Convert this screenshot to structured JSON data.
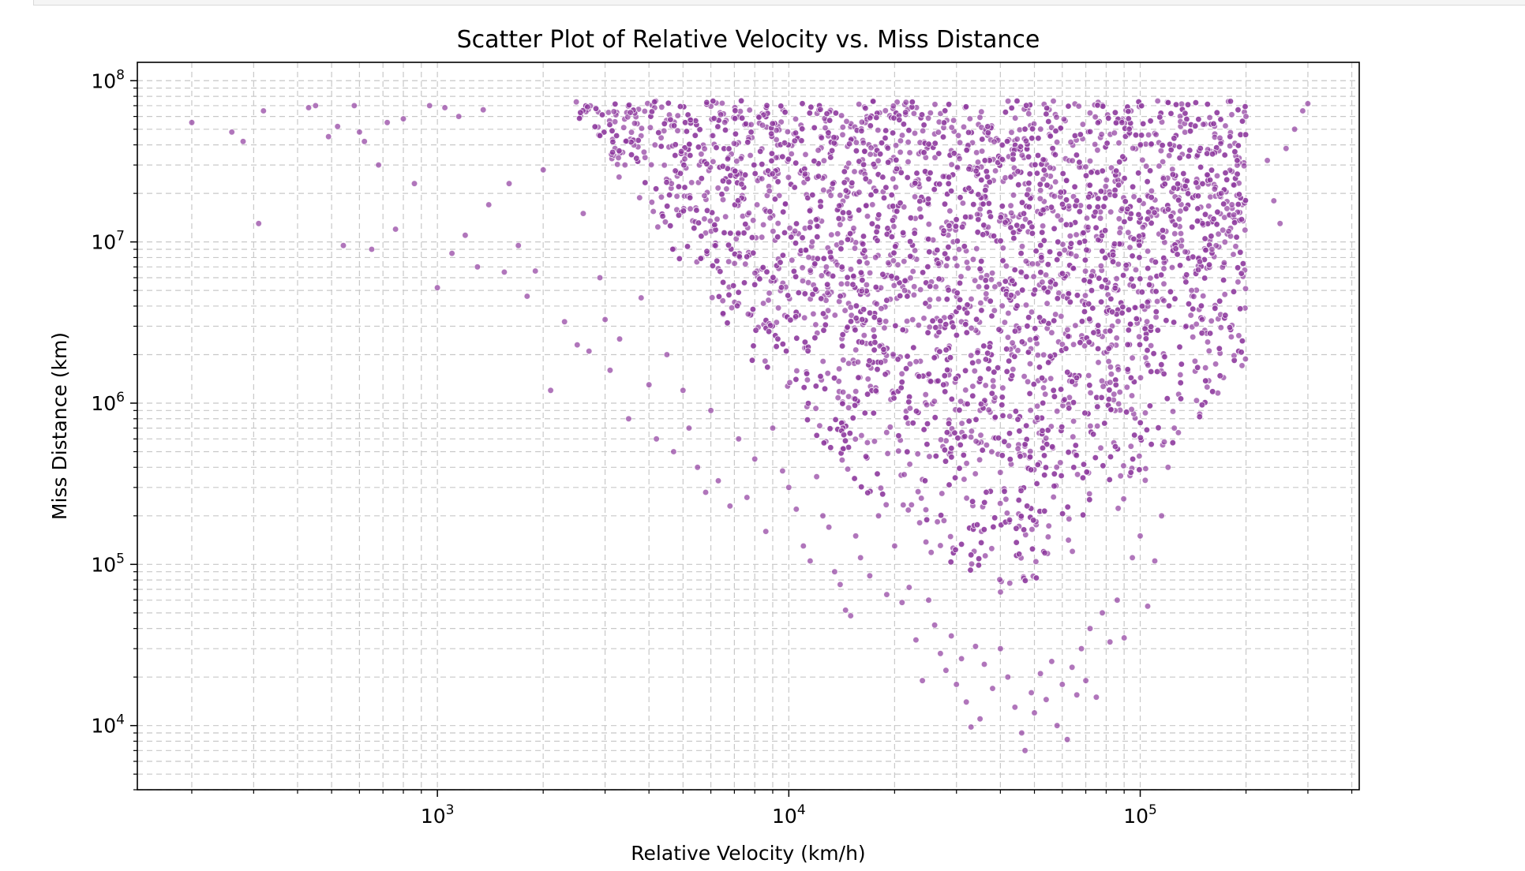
{
  "chart_data": {
    "type": "scatter",
    "title": "Scatter Plot of Relative Velocity vs. Miss Distance",
    "xlabel": "Relative Velocity (km/h)",
    "ylabel": "Miss Distance (km)",
    "xscale": "log",
    "yscale": "log",
    "xlim": [
      140,
      420000
    ],
    "ylim": [
      4000,
      130000000
    ],
    "x_ticks": [
      {
        "value": 1000,
        "base": "10",
        "exp": "3"
      },
      {
        "value": 10000,
        "base": "10",
        "exp": "4"
      },
      {
        "value": 100000,
        "base": "10",
        "exp": "5"
      }
    ],
    "y_ticks": [
      {
        "value": 10000,
        "base": "10",
        "exp": "4"
      },
      {
        "value": 100000,
        "base": "10",
        "exp": "5"
      },
      {
        "value": 1000000,
        "base": "10",
        "exp": "6"
      },
      {
        "value": 10000000,
        "base": "10",
        "exp": "7"
      },
      {
        "value": 100000000,
        "base": "10",
        "exp": "8"
      }
    ],
    "grid": true,
    "grid_style": "dashed",
    "marker_color": "#8e3a9e",
    "marker_edge_color": "#ffffff",
    "marker_alpha": 0.7,
    "points": [
      [
        200,
        55000000
      ],
      [
        260,
        48000000
      ],
      [
        280,
        42000000
      ],
      [
        310,
        13000000
      ],
      [
        320,
        65000000
      ],
      [
        430,
        68000000
      ],
      [
        450,
        70000000
      ],
      [
        490,
        45000000
      ],
      [
        520,
        52000000
      ],
      [
        540,
        9500000
      ],
      [
        580,
        70000000
      ],
      [
        600,
        48000000
      ],
      [
        620,
        42000000
      ],
      [
        650,
        9000000
      ],
      [
        680,
        30000000
      ],
      [
        720,
        55000000
      ],
      [
        760,
        12000000
      ],
      [
        800,
        58000000
      ],
      [
        860,
        23000000
      ],
      [
        950,
        70000000
      ],
      [
        1000,
        5200000
      ],
      [
        1050,
        68000000
      ],
      [
        1100,
        8500000
      ],
      [
        1150,
        60000000
      ],
      [
        1200,
        11000000
      ],
      [
        1300,
        7000000
      ],
      [
        1350,
        66000000
      ],
      [
        1400,
        17000000
      ],
      [
        1550,
        6500000
      ],
      [
        1600,
        23000000
      ],
      [
        1700,
        9500000
      ],
      [
        1800,
        4600000
      ],
      [
        1900,
        6600000
      ],
      [
        2000,
        28000000
      ],
      [
        2100,
        1200000
      ],
      [
        2300,
        3200000
      ],
      [
        2500,
        2300000
      ],
      [
        2600,
        15000000
      ],
      [
        2700,
        2100000
      ],
      [
        2900,
        6000000
      ],
      [
        3000,
        3300000
      ],
      [
        3100,
        1600000
      ],
      [
        3300,
        2500000
      ],
      [
        3500,
        800000
      ],
      [
        3800,
        4500000
      ],
      [
        4000,
        1300000
      ],
      [
        4200,
        600000
      ],
      [
        4500,
        2000000
      ],
      [
        4700,
        500000
      ],
      [
        5000,
        1200000
      ],
      [
        5200,
        700000
      ],
      [
        5500,
        400000
      ],
      [
        5800,
        280000
      ],
      [
        6000,
        900000
      ],
      [
        6300,
        330000
      ],
      [
        6800,
        230000
      ],
      [
        7200,
        600000
      ],
      [
        7600,
        260000
      ],
      [
        8000,
        450000
      ],
      [
        8600,
        160000
      ],
      [
        9000,
        700000
      ],
      [
        9600,
        380000
      ],
      [
        10000,
        300000
      ],
      [
        10500,
        220000
      ],
      [
        11000,
        130000
      ],
      [
        11500,
        105000
      ],
      [
        12000,
        350000
      ],
      [
        12500,
        200000
      ],
      [
        13000,
        170000
      ],
      [
        13500,
        90000
      ],
      [
        14000,
        75000
      ],
      [
        14500,
        52000
      ],
      [
        15000,
        48000
      ],
      [
        15500,
        150000
      ],
      [
        16000,
        110000
      ],
      [
        17000,
        85000
      ],
      [
        18000,
        200000
      ],
      [
        19000,
        65000
      ],
      [
        20000,
        130000
      ],
      [
        21000,
        58000
      ],
      [
        22000,
        72000
      ],
      [
        23000,
        34000
      ],
      [
        24000,
        19000
      ],
      [
        25000,
        60000
      ],
      [
        26000,
        42000
      ],
      [
        27000,
        28000
      ],
      [
        28000,
        22000
      ],
      [
        29000,
        36000
      ],
      [
        30000,
        18000
      ],
      [
        31000,
        26000
      ],
      [
        32000,
        14000
      ],
      [
        33000,
        9800
      ],
      [
        34000,
        31000
      ],
      [
        35000,
        11000
      ],
      [
        36000,
        24000
      ],
      [
        38000,
        17000
      ],
      [
        40000,
        30000
      ],
      [
        42000,
        20000
      ],
      [
        44000,
        13000
      ],
      [
        46000,
        9000
      ],
      [
        47000,
        7000
      ],
      [
        49000,
        16000
      ],
      [
        50000,
        12000
      ],
      [
        52000,
        21000
      ],
      [
        54000,
        14500
      ],
      [
        56000,
        25000
      ],
      [
        58000,
        10000
      ],
      [
        60000,
        18000
      ],
      [
        62000,
        8200
      ],
      [
        64000,
        23000
      ],
      [
        66000,
        15500
      ],
      [
        68000,
        30000
      ],
      [
        70000,
        19000
      ],
      [
        72000,
        40000
      ],
      [
        75000,
        15000
      ],
      [
        78000,
        50000
      ],
      [
        82000,
        33000
      ],
      [
        86000,
        60000
      ],
      [
        90000,
        35000
      ],
      [
        95000,
        110000
      ],
      [
        100000,
        150000
      ],
      [
        105000,
        55000
      ],
      [
        110000,
        105000
      ],
      [
        115000,
        200000
      ],
      [
        120000,
        400000
      ],
      [
        125000,
        700000
      ],
      [
        130000,
        1500000
      ],
      [
        135000,
        3000000
      ],
      [
        140000,
        5000000
      ],
      [
        150000,
        3300000
      ],
      [
        160000,
        9000000
      ],
      [
        170000,
        20000000
      ],
      [
        180000,
        45000000
      ],
      [
        200000,
        60000000
      ],
      [
        230000,
        32000000
      ],
      [
        240000,
        18000000
      ],
      [
        250000,
        13000000
      ],
      [
        260000,
        38000000
      ],
      [
        275000,
        50000000
      ],
      [
        290000,
        65000000
      ],
      [
        300000,
        72000000
      ]
    ],
    "dense_region": {
      "x": [
        1800,
        200000
      ],
      "y": [
        30000,
        75000000
      ],
      "count": 4200
    }
  }
}
